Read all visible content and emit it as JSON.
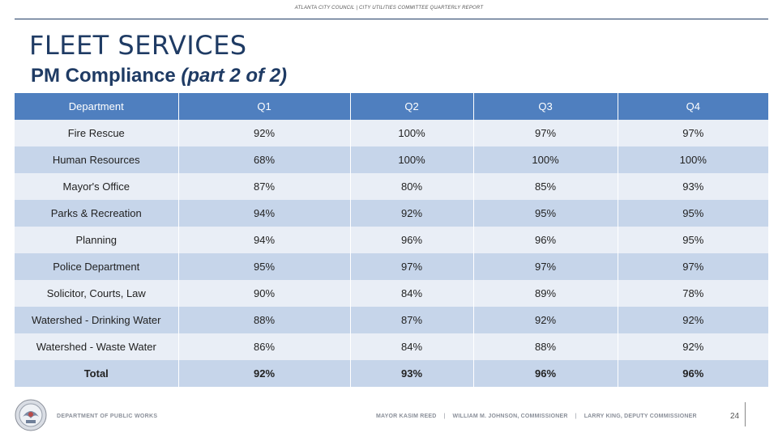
{
  "header": {
    "caption": "ATLANTA CITY COUNCIL | CITY UTILITIES COMMITTEE QUARTERLY REPORT"
  },
  "title": "FLEET SERVICES",
  "subtitle": {
    "main": "PM Compliance",
    "part": "(part 2 of 2)"
  },
  "table": {
    "headers": [
      "Department",
      "Q1",
      "Q2",
      "Q3",
      "Q4"
    ],
    "rows": [
      [
        "Fire Rescue",
        "92%",
        "100%",
        "97%",
        "97%"
      ],
      [
        "Human Resources",
        "68%",
        "100%",
        "100%",
        "100%"
      ],
      [
        "Mayor's Office",
        "87%",
        "80%",
        "85%",
        "93%"
      ],
      [
        "Parks & Recreation",
        "94%",
        "92%",
        "95%",
        "95%"
      ],
      [
        "Planning",
        "94%",
        "96%",
        "96%",
        "95%"
      ],
      [
        "Police Department",
        "95%",
        "97%",
        "97%",
        "97%"
      ],
      [
        "Solicitor, Courts, Law",
        "90%",
        "84%",
        "89%",
        "78%"
      ],
      [
        "Watershed - Drinking Water",
        "88%",
        "87%",
        "92%",
        "92%"
      ],
      [
        "Watershed - Waste Water",
        "86%",
        "84%",
        "88%",
        "92%"
      ]
    ],
    "total": [
      "Total",
      "92%",
      "93%",
      "96%",
      "96%"
    ]
  },
  "footer": {
    "department": "DEPARTMENT OF PUBLIC WORKS",
    "mayor": "MAYOR KASIM REED",
    "commissioner": "WILLIAM M. JOHNSON, COMMISSIONER",
    "deputy": "LARRY KING, DEPUTY COMMISSIONER",
    "separator": "|",
    "page_number": "24"
  },
  "colors": {
    "brand_navy": "#1f3b64",
    "table_header": "#4f7fbf",
    "row_light": "#e9eef6",
    "row_dark": "#c6d5ea"
  }
}
